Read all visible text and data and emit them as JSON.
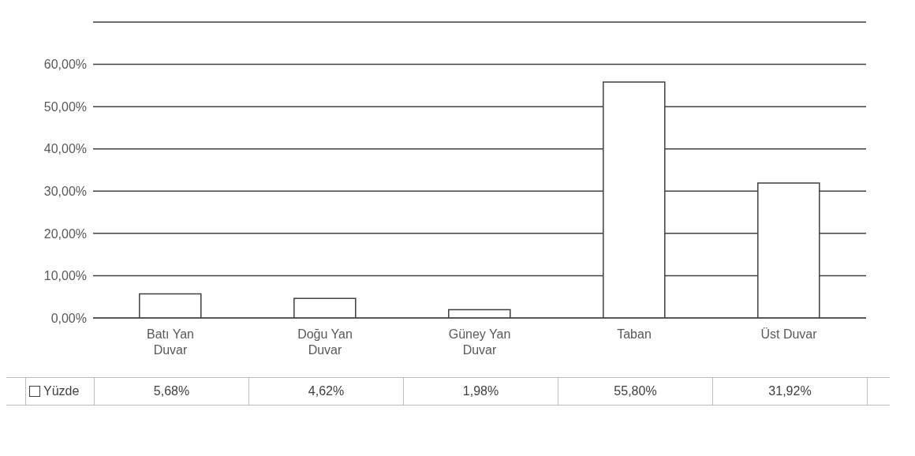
{
  "chart_data": {
    "type": "bar",
    "categories": [
      "Batı Yan Duvar",
      "Doğu Yan Duvar",
      "Güney Yan Duvar",
      "Taban",
      "Üst Duvar"
    ],
    "series": [
      {
        "name": "Yüzde",
        "color": "#ffffff",
        "values": [
          5.68,
          4.62,
          1.98,
          55.8,
          31.92
        ],
        "value_labels": [
          "5,68%",
          "4,62%",
          "1,98%",
          "55,80%",
          "31,92%"
        ]
      }
    ],
    "ylim": [
      0,
      70
    ],
    "yticks": [
      {
        "value": 0,
        "label": "0,00%"
      },
      {
        "value": 10,
        "label": "10,00%"
      },
      {
        "value": 20,
        "label": "20,00%"
      },
      {
        "value": 30,
        "label": "30,00%"
      },
      {
        "value": 40,
        "label": "40,00%"
      },
      {
        "value": 50,
        "label": "50,00%"
      },
      {
        "value": 60,
        "label": "60,00%"
      },
      {
        "value": 70,
        "label": null
      }
    ],
    "grid": "y",
    "legend": "bottom"
  }
}
